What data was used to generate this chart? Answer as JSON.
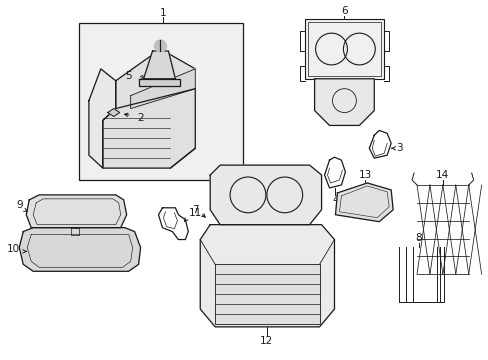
{
  "bg_color": "#ffffff",
  "line_color": "#1a1a1a",
  "fig_width": 4.89,
  "fig_height": 3.6,
  "dpi": 100,
  "label_fontsize": 7.5
}
